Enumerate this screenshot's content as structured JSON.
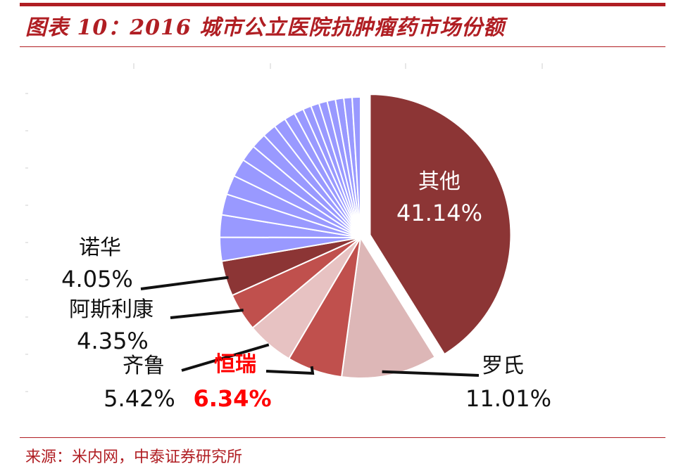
{
  "header": {
    "title": "图表 10：2016 城市公立医院抗肿瘤药市场份额"
  },
  "footer": {
    "source": "来源：米内网，中泰证券研究所"
  },
  "colors": {
    "accent": "#b01e23",
    "others_slice": "#8c3535",
    "roche_slice": "#ddb7b7",
    "hengrui_slice": "#c0504d",
    "qilu_slice": "#e7c2c2",
    "asz_slice": "#c0504d",
    "novartis_slice": "#8c3535",
    "small_slices": "#9999ff",
    "highlight_text": "#ff0000"
  },
  "chart_data": {
    "type": "pie",
    "title": "",
    "slices": [
      {
        "name": "其他",
        "value": 41.14,
        "label": "41.14%"
      },
      {
        "name": "罗氏",
        "value": 11.01,
        "label": "11.01%"
      },
      {
        "name": "恒瑞",
        "value": 6.34,
        "label": "6.34%",
        "highlight": true
      },
      {
        "name": "齐鲁",
        "value": 5.42,
        "label": "5.42%"
      },
      {
        "name": "阿斯利康",
        "value": 4.35,
        "label": "4.35%"
      },
      {
        "name": "诺华",
        "value": 4.05,
        "label": "4.05%"
      }
    ],
    "remaining_small_slices_count": 18,
    "legend": "none"
  }
}
